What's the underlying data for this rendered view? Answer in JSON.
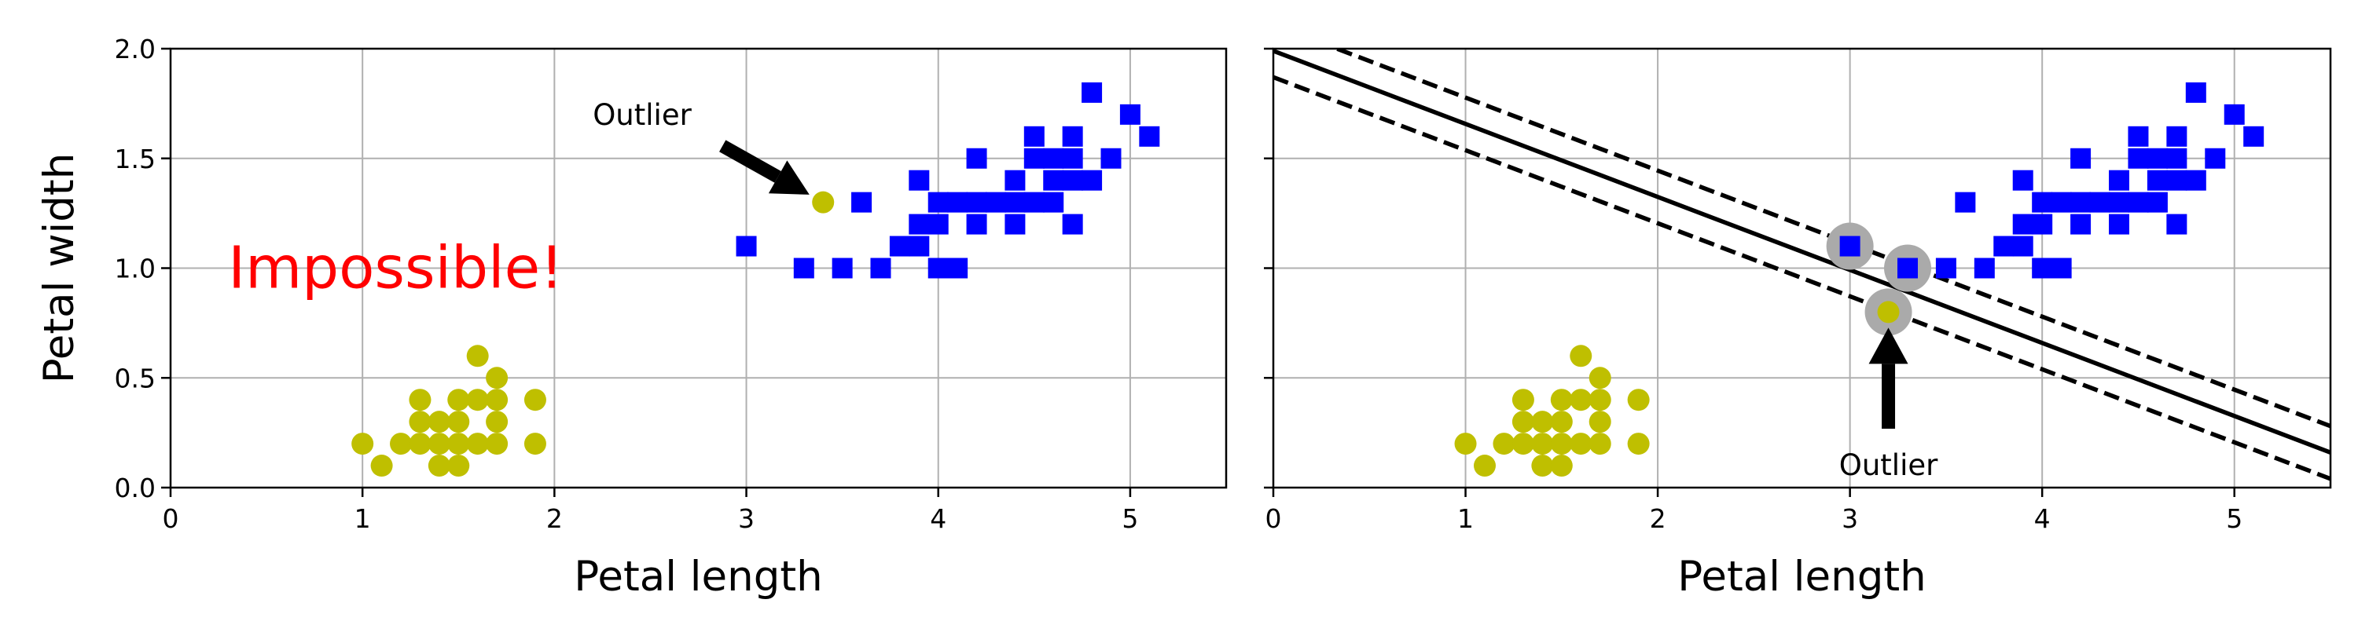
{
  "colors": {
    "setosa": "#bfbf00",
    "versicolor": "#0000ff",
    "impossible_text": "#ff0000",
    "support_ring": "#aaaaaa",
    "grid": "#b0b0b0",
    "axis": "#000000"
  },
  "chart_data": [
    {
      "type": "scatter",
      "grid": true,
      "xlabel": "Petal length",
      "ylabel": "Petal width",
      "xlim": [
        0,
        5.5
      ],
      "ylim": [
        0,
        2.0
      ],
      "x_ticks": [
        0,
        1,
        2,
        3,
        4,
        5
      ],
      "y_ticks": [
        0.0,
        0.5,
        1.0,
        1.5,
        2.0
      ],
      "x_tick_labels": [
        "0",
        "1",
        "2",
        "3",
        "4",
        "5"
      ],
      "y_tick_labels": [
        "0.0",
        "0.5",
        "1.0",
        "1.5",
        "2.0"
      ],
      "series": [
        {
          "marker": "circle",
          "color": "#bfbf00",
          "points": [
            [
              1.0,
              0.2
            ],
            [
              1.1,
              0.1
            ],
            [
              1.2,
              0.2
            ],
            [
              1.3,
              0.2
            ],
            [
              1.3,
              0.3
            ],
            [
              1.3,
              0.4
            ],
            [
              1.4,
              0.1
            ],
            [
              1.4,
              0.2
            ],
            [
              1.4,
              0.3
            ],
            [
              1.5,
              0.1
            ],
            [
              1.5,
              0.2
            ],
            [
              1.5,
              0.3
            ],
            [
              1.5,
              0.4
            ],
            [
              1.6,
              0.2
            ],
            [
              1.6,
              0.4
            ],
            [
              1.6,
              0.6
            ],
            [
              1.7,
              0.2
            ],
            [
              1.7,
              0.3
            ],
            [
              1.7,
              0.4
            ],
            [
              1.7,
              0.5
            ],
            [
              1.9,
              0.2
            ],
            [
              1.9,
              0.4
            ],
            [
              3.4,
              1.3
            ]
          ]
        },
        {
          "marker": "square",
          "color": "#0000ff",
          "points": [
            [
              3.0,
              1.1
            ],
            [
              3.3,
              1.0
            ],
            [
              3.5,
              1.0
            ],
            [
              3.6,
              1.3
            ],
            [
              3.7,
              1.0
            ],
            [
              3.8,
              1.1
            ],
            [
              3.9,
              1.1
            ],
            [
              3.9,
              1.2
            ],
            [
              3.9,
              1.4
            ],
            [
              4.0,
              1.0
            ],
            [
              4.0,
              1.2
            ],
            [
              4.0,
              1.3
            ],
            [
              4.1,
              1.0
            ],
            [
              4.1,
              1.3
            ],
            [
              4.2,
              1.2
            ],
            [
              4.2,
              1.3
            ],
            [
              4.2,
              1.5
            ],
            [
              4.3,
              1.3
            ],
            [
              4.4,
              1.2
            ],
            [
              4.4,
              1.3
            ],
            [
              4.4,
              1.4
            ],
            [
              4.5,
              1.3
            ],
            [
              4.5,
              1.5
            ],
            [
              4.5,
              1.6
            ],
            [
              4.6,
              1.3
            ],
            [
              4.6,
              1.4
            ],
            [
              4.6,
              1.5
            ],
            [
              4.7,
              1.2
            ],
            [
              4.7,
              1.4
            ],
            [
              4.7,
              1.5
            ],
            [
              4.7,
              1.6
            ],
            [
              4.8,
              1.4
            ],
            [
              4.8,
              1.8
            ],
            [
              4.9,
              1.5
            ],
            [
              5.0,
              1.7
            ],
            [
              5.1,
              1.6
            ]
          ]
        }
      ],
      "annotations": [
        {
          "text": "Outlier",
          "text_at": [
            2.2,
            1.7
          ],
          "arrow_to": [
            3.4,
            1.3
          ]
        },
        {
          "text": "Impossible!",
          "at": [
            0.3,
            1.0
          ],
          "color": "#ff0000"
        }
      ]
    },
    {
      "type": "scatter",
      "grid": true,
      "xlabel": "Petal length",
      "ylabel": "",
      "xlim": [
        0,
        5.5
      ],
      "ylim": [
        0,
        2.0
      ],
      "x_ticks": [
        0,
        1,
        2,
        3,
        4,
        5
      ],
      "y_ticks": [
        0.0,
        0.5,
        1.0,
        1.5,
        2.0
      ],
      "x_tick_labels": [
        "0",
        "1",
        "2",
        "3",
        "4",
        "5"
      ],
      "y_tick_labels": [],
      "series": [
        {
          "marker": "circle",
          "color": "#bfbf00",
          "points": [
            [
              1.0,
              0.2
            ],
            [
              1.1,
              0.1
            ],
            [
              1.2,
              0.2
            ],
            [
              1.3,
              0.2
            ],
            [
              1.3,
              0.3
            ],
            [
              1.3,
              0.4
            ],
            [
              1.4,
              0.1
            ],
            [
              1.4,
              0.2
            ],
            [
              1.4,
              0.3
            ],
            [
              1.5,
              0.1
            ],
            [
              1.5,
              0.2
            ],
            [
              1.5,
              0.3
            ],
            [
              1.5,
              0.4
            ],
            [
              1.6,
              0.2
            ],
            [
              1.6,
              0.4
            ],
            [
              1.6,
              0.6
            ],
            [
              1.7,
              0.2
            ],
            [
              1.7,
              0.3
            ],
            [
              1.7,
              0.4
            ],
            [
              1.7,
              0.5
            ],
            [
              1.9,
              0.2
            ],
            [
              1.9,
              0.4
            ],
            [
              3.2,
              0.8
            ]
          ]
        },
        {
          "marker": "square",
          "color": "#0000ff",
          "points": [
            [
              3.0,
              1.1
            ],
            [
              3.3,
              1.0
            ],
            [
              3.5,
              1.0
            ],
            [
              3.6,
              1.3
            ],
            [
              3.7,
              1.0
            ],
            [
              3.8,
              1.1
            ],
            [
              3.9,
              1.1
            ],
            [
              3.9,
              1.2
            ],
            [
              3.9,
              1.4
            ],
            [
              4.0,
              1.0
            ],
            [
              4.0,
              1.2
            ],
            [
              4.0,
              1.3
            ],
            [
              4.1,
              1.0
            ],
            [
              4.1,
              1.3
            ],
            [
              4.2,
              1.2
            ],
            [
              4.2,
              1.3
            ],
            [
              4.2,
              1.5
            ],
            [
              4.3,
              1.3
            ],
            [
              4.4,
              1.2
            ],
            [
              4.4,
              1.3
            ],
            [
              4.4,
              1.4
            ],
            [
              4.5,
              1.3
            ],
            [
              4.5,
              1.5
            ],
            [
              4.5,
              1.6
            ],
            [
              4.6,
              1.3
            ],
            [
              4.6,
              1.4
            ],
            [
              4.6,
              1.5
            ],
            [
              4.7,
              1.2
            ],
            [
              4.7,
              1.4
            ],
            [
              4.7,
              1.5
            ],
            [
              4.7,
              1.6
            ],
            [
              4.8,
              1.4
            ],
            [
              4.8,
              1.8
            ],
            [
              4.9,
              1.5
            ],
            [
              5.0,
              1.7
            ],
            [
              5.1,
              1.6
            ]
          ]
        }
      ],
      "support_vectors": [
        [
          3.0,
          1.1
        ],
        [
          3.3,
          1.0
        ],
        [
          3.2,
          0.8
        ]
      ],
      "lines": [
        {
          "style": "solid",
          "points": [
            [
              0,
              1.99
            ],
            [
              5.5,
              0.16
            ]
          ]
        },
        {
          "style": "dashed",
          "points": [
            [
              0,
              2.11
            ],
            [
              5.5,
              0.28
            ]
          ]
        },
        {
          "style": "dashed",
          "points": [
            [
              0,
              1.87
            ],
            [
              5.5,
              0.04
            ]
          ]
        }
      ],
      "annotations": [
        {
          "text": "Outlier",
          "text_at": [
            3.2,
            0.1
          ],
          "arrow_to": [
            3.2,
            0.8
          ]
        }
      ]
    }
  ]
}
